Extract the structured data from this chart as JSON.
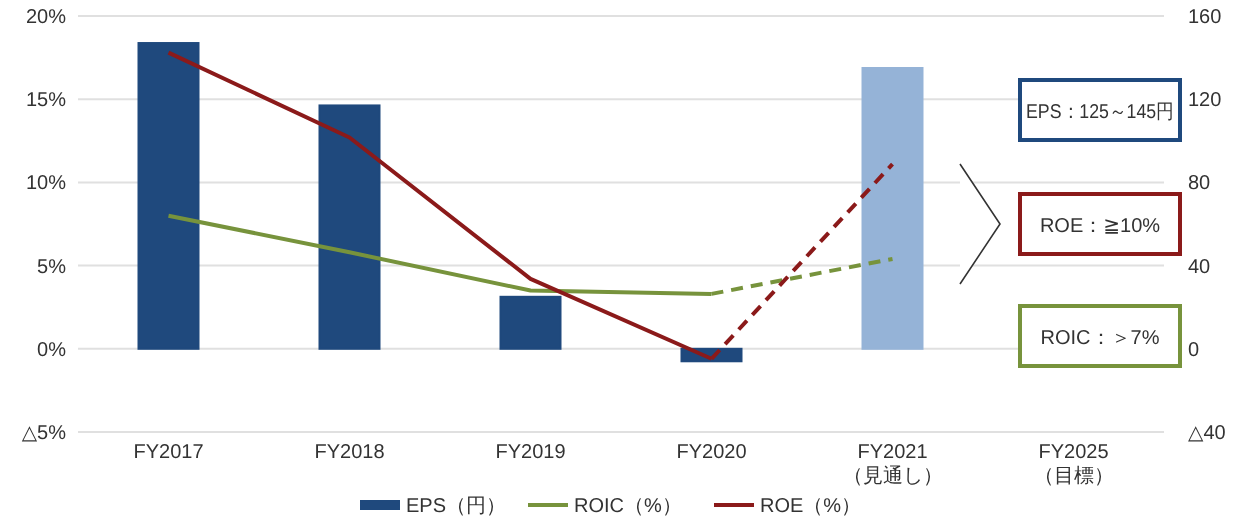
{
  "chart_data": {
    "type": "bar",
    "categories": [
      "FY2017",
      "FY2018",
      "FY2019",
      "FY2020",
      "FY2021\n（見通し）",
      "FY2025\n（目標）"
    ],
    "series": [
      {
        "name": "EPS（円）",
        "axis": "y2",
        "color": "#1f497d",
        "colors": [
          "#1f497d",
          "#1f497d",
          "#1f497d",
          "#1f497d",
          "#95b3d7",
          null
        ],
        "values": [
          147,
          117,
          25,
          -6,
          135,
          null
        ]
      },
      {
        "name": "ROIC（%）",
        "type": "line",
        "color": "#77933c",
        "values": [
          8.0,
          5.8,
          3.5,
          3.3,
          null,
          null
        ]
      },
      {
        "type": "line",
        "color": "#77933c",
        "line_style": "dashed",
        "values": [
          null,
          null,
          null,
          3.3,
          5.4,
          null
        ]
      },
      {
        "name": "ROE（%）",
        "type": "line",
        "color": "#8b1a1a",
        "values": [
          17.8,
          12.7,
          4.2,
          -0.6,
          null,
          null
        ]
      },
      {
        "type": "line",
        "color": "#8b1a1a",
        "line_style": "dashed",
        "values": [
          null,
          null,
          null,
          -0.6,
          11.1,
          null
        ]
      }
    ],
    "ylim": [
      -5,
      20
    ],
    "yticks": [
      {
        "value": -5,
        "label": "△5%"
      },
      {
        "value": 0,
        "label": "0%"
      },
      {
        "value": 5,
        "label": "5%"
      },
      {
        "value": 10,
        "label": "10%"
      },
      {
        "value": 15,
        "label": "15%"
      },
      {
        "value": 20,
        "label": "20%"
      }
    ],
    "y2lim": [
      -40,
      160
    ],
    "y2ticks": [
      {
        "value": -40,
        "label": "△40"
      },
      0,
      40,
      80,
      120,
      160
    ],
    "grid": "y",
    "legend": "bottom",
    "marker": "none",
    "annotations": [
      "EPS：125～145円",
      "ROE：≧10%",
      "ROIC：＞7%"
    ]
  }
}
